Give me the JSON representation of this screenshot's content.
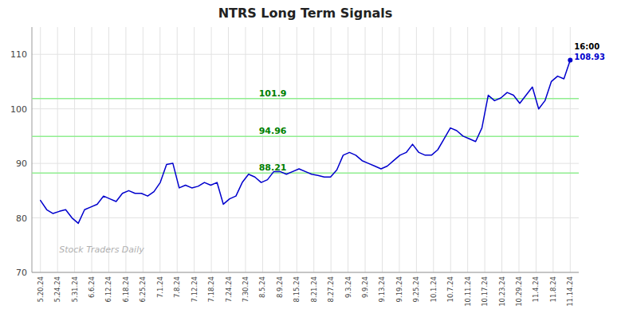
{
  "chart_data": {
    "type": "line",
    "title": "NTRS Long Term Signals",
    "color": "#0000CD",
    "grid": true,
    "xlim": [
      -0.5,
      31.5
    ],
    "xticks": [
      {
        "value": 0,
        "label": "5.20.24"
      },
      {
        "value": 1,
        "label": "5.24.24"
      },
      {
        "value": 2,
        "label": "5.31.24"
      },
      {
        "value": 3,
        "label": "6.6.24"
      },
      {
        "value": 4,
        "label": "6.12.24"
      },
      {
        "value": 5,
        "label": "6.18.24"
      },
      {
        "value": 6,
        "label": "6.25.24"
      },
      {
        "value": 7,
        "label": "7.1.24"
      },
      {
        "value": 8,
        "label": "7.8.24"
      },
      {
        "value": 9,
        "label": "7.12.24"
      },
      {
        "value": 10,
        "label": "7.18.24"
      },
      {
        "value": 11,
        "label": "7.24.24"
      },
      {
        "value": 12,
        "label": "7.30.24"
      },
      {
        "value": 13,
        "label": "8.5.24"
      },
      {
        "value": 14,
        "label": "8.9.24"
      },
      {
        "value": 15,
        "label": "8.15.24"
      },
      {
        "value": 16,
        "label": "8.21.24"
      },
      {
        "value": 17,
        "label": "8.27.24"
      },
      {
        "value": 18,
        "label": "9.3.24"
      },
      {
        "value": 19,
        "label": "9.9.24"
      },
      {
        "value": 20,
        "label": "9.13.24"
      },
      {
        "value": 21,
        "label": "9.19.24"
      },
      {
        "value": 22,
        "label": "9.25.24"
      },
      {
        "value": 23,
        "label": "10.1.24"
      },
      {
        "value": 24,
        "label": "10.7.24"
      },
      {
        "value": 25,
        "label": "10.11.24"
      },
      {
        "value": 26,
        "label": "10.17.24"
      },
      {
        "value": 27,
        "label": "10.23.24"
      },
      {
        "value": 28,
        "label": "10.29.24"
      },
      {
        "value": 29,
        "label": "11.4.24"
      },
      {
        "value": 30,
        "label": "11.8.24"
      },
      {
        "value": 31,
        "label": "11.14.24"
      }
    ],
    "ylim": [
      70,
      115
    ],
    "yticks": [
      70,
      80,
      90,
      100,
      110
    ],
    "x": [
      0,
      0.369,
      0.7381,
      1.1071,
      1.4762,
      1.8452,
      2.2143,
      2.5833,
      2.9524,
      3.3214,
      3.6905,
      4.0595,
      4.4286,
      4.7976,
      5.1667,
      5.5357,
      5.9048,
      6.2738,
      6.6429,
      7.0119,
      7.381,
      7.75,
      8.119,
      8.4881,
      8.8571,
      9.2262,
      9.5952,
      9.9643,
      10.3333,
      10.7024,
      11.0714,
      11.4405,
      11.8095,
      12.1786,
      12.5476,
      12.9167,
      13.2857,
      13.6548,
      14.0238,
      14.3929,
      14.7619,
      15.131,
      15.5,
      15.869,
      16.2381,
      16.6071,
      16.9762,
      17.3452,
      17.7143,
      18.0833,
      18.4524,
      18.8214,
      19.1905,
      19.5595,
      19.9286,
      20.2976,
      20.6667,
      21.0357,
      21.4048,
      21.7738,
      22.1429,
      22.5119,
      22.881,
      23.25,
      23.619,
      23.9881,
      24.3571,
      24.7262,
      25.0952,
      25.4643,
      25.8333,
      26.2024,
      26.5714,
      26.9405,
      27.3095,
      27.6786,
      28.0476,
      28.4167,
      28.7857,
      29.1548,
      29.5238,
      29.8929,
      30.2619,
      30.631,
      31
    ],
    "values": [
      83.2,
      81.5,
      80.8,
      81.2,
      81.5,
      80.0,
      79.0,
      81.5,
      82.0,
      82.5,
      84.0,
      83.5,
      83.0,
      84.5,
      85.0,
      84.5,
      84.5,
      84.0,
      84.8,
      86.5,
      89.8,
      90.0,
      85.5,
      86.0,
      85.5,
      85.8,
      86.5,
      86.0,
      86.5,
      82.5,
      83.5,
      84.0,
      86.5,
      88.0,
      87.5,
      86.5,
      87.0,
      88.5,
      88.5,
      88.0,
      88.5,
      89.0,
      88.5,
      88.0,
      87.8,
      87.5,
      87.5,
      88.8,
      91.5,
      92.0,
      91.5,
      90.5,
      90.0,
      89.5,
      89.0,
      89.5,
      90.5,
      91.5,
      92.0,
      93.5,
      92.0,
      91.5,
      91.5,
      92.5,
      94.5,
      96.5,
      96.0,
      95.0,
      94.5,
      94.0,
      96.5,
      102.5,
      101.5,
      102.0,
      103.0,
      102.5,
      101.0,
      102.5,
      104.0,
      100.0,
      101.5,
      105.0,
      106.0,
      105.5,
      108.93
    ],
    "hlines": [
      {
        "value": 88.21,
        "label": "88.21",
        "color": "#90EE90",
        "label_color": "#008000"
      },
      {
        "value": 94.96,
        "label": "94.96",
        "color": "#90EE90",
        "label_color": "#008000"
      },
      {
        "value": 101.9,
        "label": "101.9",
        "color": "#90EE90",
        "label_color": "#008000"
      }
    ],
    "annotations": [
      {
        "text": "16:00",
        "color": "#000000"
      },
      {
        "text": "108.93",
        "color": "#0000CD"
      }
    ],
    "watermark": {
      "text": "Stock Traders Daily",
      "color": "#b0b0b0"
    }
  }
}
